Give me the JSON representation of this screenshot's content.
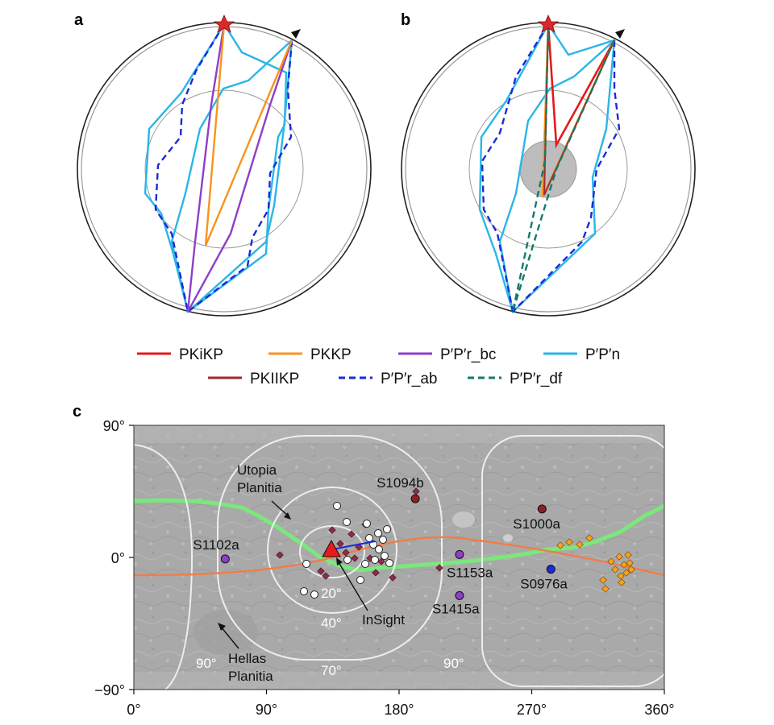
{
  "panels": {
    "a": {
      "label": "a"
    },
    "b": {
      "label": "b"
    },
    "c": {
      "label": "c"
    }
  },
  "legend": [
    {
      "id": "pkikp",
      "label": "PKiKP",
      "color": "#e41a1c",
      "dash": false
    },
    {
      "id": "pkkp",
      "label": "PKKP",
      "color": "#f7941d",
      "dash": false
    },
    {
      "id": "pprbc",
      "label": "P′P′r_bc",
      "color": "#8e3ec9",
      "dash": false
    },
    {
      "id": "ppn",
      "label": "P′P′n",
      "color": "#29b6e8",
      "dash": false
    },
    {
      "id": "pkiikp",
      "label": "PKIIKP",
      "color": "#9b2d30",
      "dash": false
    },
    {
      "id": "pprab",
      "label": "P′P′r_ab",
      "color": "#1a2bd6",
      "dash": true
    },
    {
      "id": "pprdf",
      "label": "P′P′r_df",
      "color": "#137a6a",
      "dash": true
    }
  ],
  "map": {
    "y_ticks": [
      "90°",
      "0°",
      "−90°"
    ],
    "x_ticks": [
      "0°",
      "90°",
      "180°",
      "270°",
      "360°"
    ],
    "contours": [
      "20°",
      "40°",
      "70°",
      "90°",
      "90°"
    ],
    "regions": {
      "utopia_line1": "Utopia",
      "utopia_line2": "Planitia",
      "hellas_line1": "Hellas",
      "hellas_line2": "Planitia"
    },
    "station": "InSight",
    "events": [
      {
        "id": "S1094b",
        "label": "S1094b",
        "lon": 191,
        "lat": 40,
        "color": "#8b2026"
      },
      {
        "id": "S1000a",
        "label": "S1000a",
        "lon": 277,
        "lat": 33,
        "color": "#8b2026"
      },
      {
        "id": "S1102a",
        "label": "S1102a",
        "lon": 62,
        "lat": -1,
        "color": "#8e3ec9"
      },
      {
        "id": "S1153a",
        "label": "S1153a",
        "lon": 221,
        "lat": 2,
        "color": "#8e3ec9"
      },
      {
        "id": "S1415a",
        "label": "S1415a",
        "lon": 221,
        "lat": -26,
        "color": "#8e3ec9"
      },
      {
        "id": "S0976a",
        "label": "S0976a",
        "lon": 283,
        "lat": -8,
        "color": "#1a2bd6"
      }
    ]
  }
}
